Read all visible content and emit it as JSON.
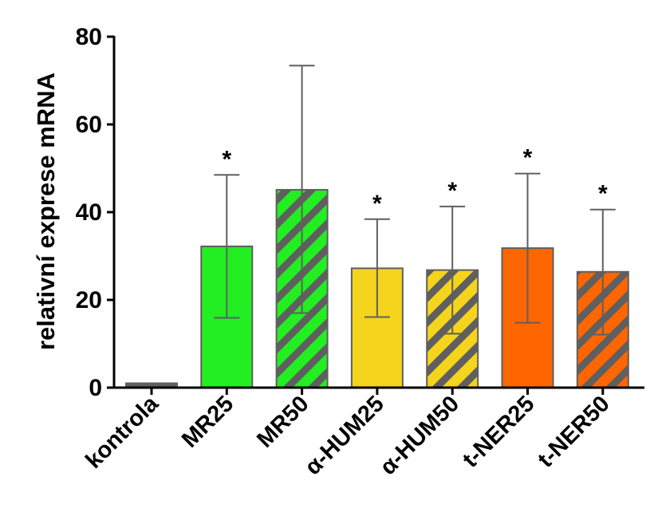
{
  "chart_data": {
    "type": "bar",
    "title": "",
    "xlabel": "",
    "ylabel": "relativní exprese mRNA",
    "ylim": [
      0,
      80
    ],
    "yticks": [
      0,
      20,
      40,
      60,
      80
    ],
    "categories": [
      "kontrola",
      "MR25",
      "MR50",
      "α-HUM25",
      "α-HUM50",
      "t-NER25",
      "t-NER50"
    ],
    "values": [
      1,
      32.2,
      45.1,
      27.2,
      26.8,
      31.8,
      26.4
    ],
    "error_low": [
      1,
      15.9,
      17,
      16.1,
      12.3,
      14.8,
      12.1
    ],
    "error_high": [
      1,
      48.5,
      73.4,
      38.4,
      41.3,
      48.8,
      40.6
    ],
    "significance": [
      "",
      "*",
      "",
      "*",
      "*",
      "*",
      "*"
    ],
    "colors": [
      "#5f5f5f",
      "#22ee22",
      "#22ee22",
      "#f4d41c",
      "#f4d41c",
      "#ff6600",
      "#ff6600"
    ],
    "hatched": [
      false,
      false,
      true,
      false,
      true,
      false,
      true
    ],
    "hatch_color": "#5f5f5f",
    "grid": false
  }
}
